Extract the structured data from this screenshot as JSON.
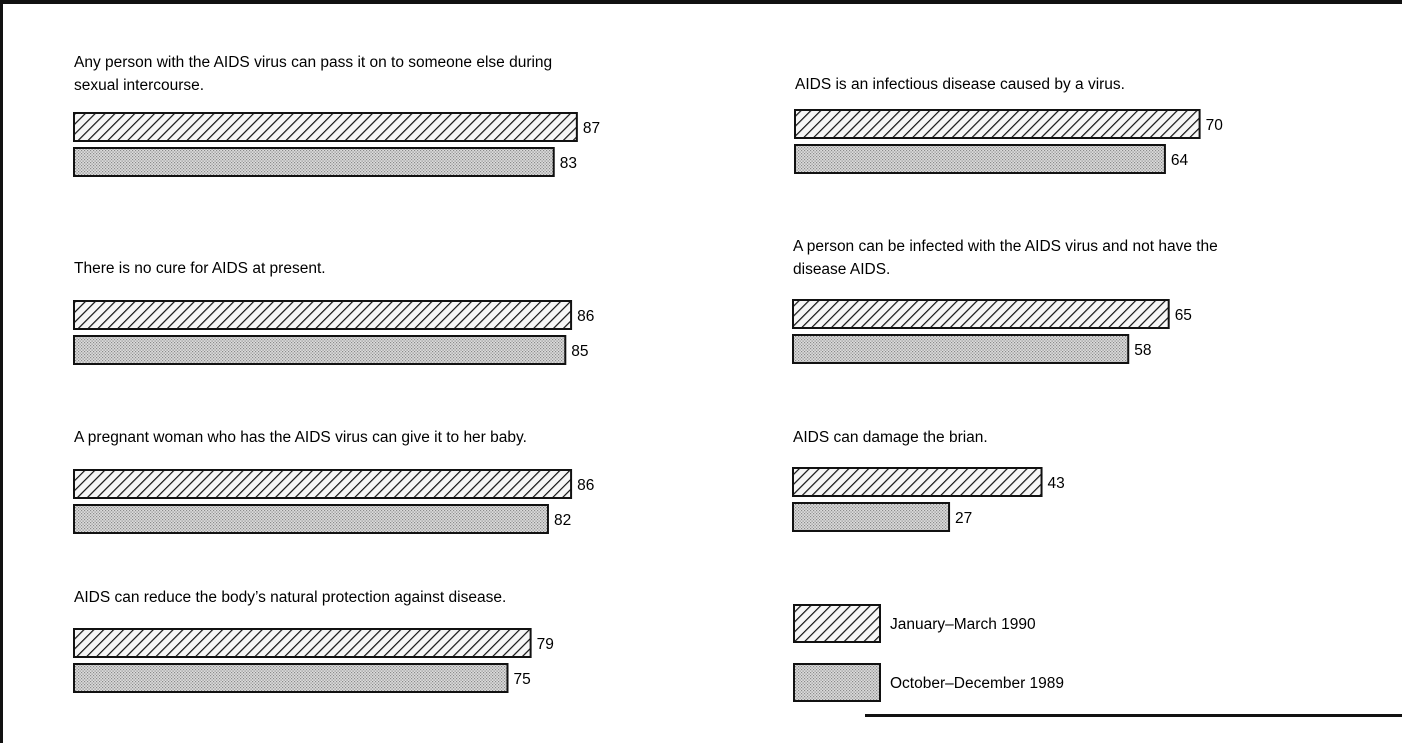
{
  "chart_data": {
    "type": "bar",
    "orientation": "horizontal",
    "value_labels": true,
    "legend": {
      "placement": "bottom-right",
      "items": [
        {
          "name": "January–March 1990",
          "pattern": "diagonal-hatch"
        },
        {
          "name": "October–December 1989",
          "pattern": "dotted"
        }
      ]
    },
    "categories": [
      [
        "Any person with the AIDS virus can pass it on to someone else during",
        "sexual intercourse."
      ],
      [
        "There is no cure for AIDS at present."
      ],
      [
        "A pregnant woman who has the AIDS virus can give it to her baby."
      ],
      [
        "AIDS can reduce the body’s natural protection against disease."
      ],
      [
        "AIDS is an infectious disease caused by a virus."
      ],
      [
        "A person can be infected with the AIDS virus and not have the",
        "disease AIDS."
      ],
      [
        "AIDS can damage the brian."
      ]
    ],
    "series": [
      {
        "name": "January–March 1990",
        "values": [
          87,
          86,
          86,
          79,
          70,
          65,
          43
        ]
      },
      {
        "name": "October–December 1989",
        "values": [
          83,
          85,
          82,
          75,
          64,
          58,
          27
        ]
      }
    ],
    "colors": {
      "ink": "#111111",
      "hatch_background": "#f6f6f6",
      "dot_color": "#8a8a8a",
      "dot_background": "#dcdcdc"
    }
  }
}
